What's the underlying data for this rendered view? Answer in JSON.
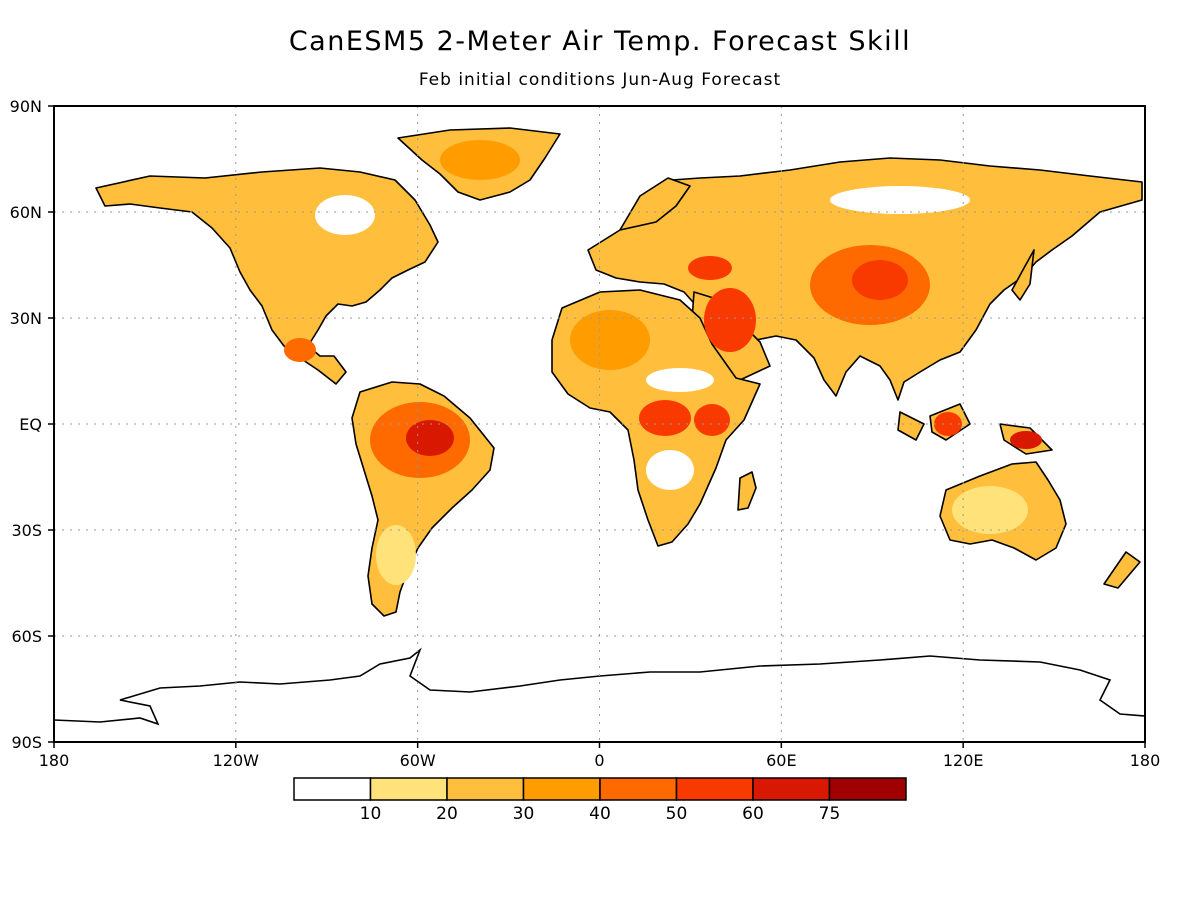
{
  "title": "CanESM5 2-Meter Air Temp. Forecast Skill",
  "subtitle": "Feb initial conditions   Jun-Aug Forecast",
  "axes": {
    "lat_labels": [
      "90N",
      "60N",
      "30N",
      "EQ",
      "30S",
      "60S",
      "90S"
    ],
    "lon_labels": [
      "180",
      "120W",
      "60W",
      "0",
      "60E",
      "120E",
      "180"
    ]
  },
  "colorbar": {
    "labels": [
      "10",
      "20",
      "30",
      "40",
      "50",
      "60",
      "75"
    ],
    "colors": [
      "#ffffff",
      "#ffe37a",
      "#ffbe3c",
      "#ff9c00",
      "#ff6a00",
      "#f83a00",
      "#d81800",
      "#a00000"
    ]
  },
  "colors": {
    "land_base": "#ffbe3c",
    "ocean": "#ffffff",
    "coastline": "#000000",
    "grid": "#999999"
  }
}
